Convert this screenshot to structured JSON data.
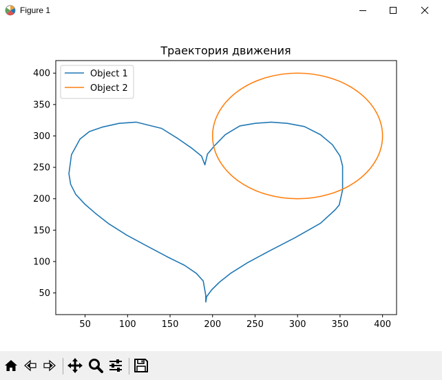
{
  "window": {
    "title": "Figure 1",
    "controls": [
      "minimize-icon",
      "maximize-icon",
      "close-icon"
    ]
  },
  "toolbar": {
    "tools": [
      "home-icon",
      "back-arrow-icon",
      "forward-arrow-icon",
      "pan-icon",
      "zoom-icon",
      "configure-subplots-icon",
      "save-icon"
    ]
  },
  "chart_data": {
    "type": "line",
    "title": "Траектория движения",
    "xlabel": "",
    "ylabel": "",
    "xlim": [
      15.5,
      416.5
    ],
    "ylim": [
      15.5,
      420
    ],
    "xticks": [
      50,
      100,
      150,
      200,
      250,
      300,
      350,
      400
    ],
    "yticks": [
      50,
      100,
      150,
      200,
      250,
      300,
      350,
      400
    ],
    "grid": false,
    "legend": "upper-left",
    "series": [
      {
        "name": "Object 1",
        "color": "#1f77b4",
        "points": [
          [
            192,
            35
          ],
          [
            193,
            44
          ],
          [
            199,
            55
          ],
          [
            208,
            67
          ],
          [
            221,
            81
          ],
          [
            241,
            98
          ],
          [
            267,
            117
          ],
          [
            297,
            138
          ],
          [
            327,
            161
          ],
          [
            344,
            182
          ],
          [
            349,
            190
          ],
          [
            353,
            214
          ],
          [
            353,
            230
          ],
          [
            353,
            252
          ],
          [
            350,
            268
          ],
          [
            341,
            286
          ],
          [
            327,
            302
          ],
          [
            308,
            315
          ],
          [
            288,
            320
          ],
          [
            269,
            322
          ],
          [
            250,
            320
          ],
          [
            232,
            316
          ],
          [
            215,
            302
          ],
          [
            202,
            284
          ],
          [
            194,
            271
          ],
          [
            191,
            254
          ],
          [
            187,
            268
          ],
          [
            175,
            281
          ],
          [
            159,
            296
          ],
          [
            140,
            312
          ],
          [
            110,
            322
          ],
          [
            90,
            320
          ],
          [
            70,
            314
          ],
          [
            55,
            307
          ],
          [
            44,
            295
          ],
          [
            34,
            270
          ],
          [
            31,
            240
          ],
          [
            33,
            223
          ],
          [
            39,
            207
          ],
          [
            50,
            191
          ],
          [
            62,
            177
          ],
          [
            78,
            160
          ],
          [
            99,
            142
          ],
          [
            121,
            126
          ],
          [
            146,
            108
          ],
          [
            167,
            94
          ],
          [
            181,
            81
          ],
          [
            189,
            69
          ],
          [
            192,
            46
          ],
          [
            192,
            35
          ]
        ]
      },
      {
        "name": "Object 2",
        "color": "#ff7f0e",
        "circle": {
          "cx": 300,
          "cy": 300,
          "r": 100
        }
      }
    ]
  }
}
